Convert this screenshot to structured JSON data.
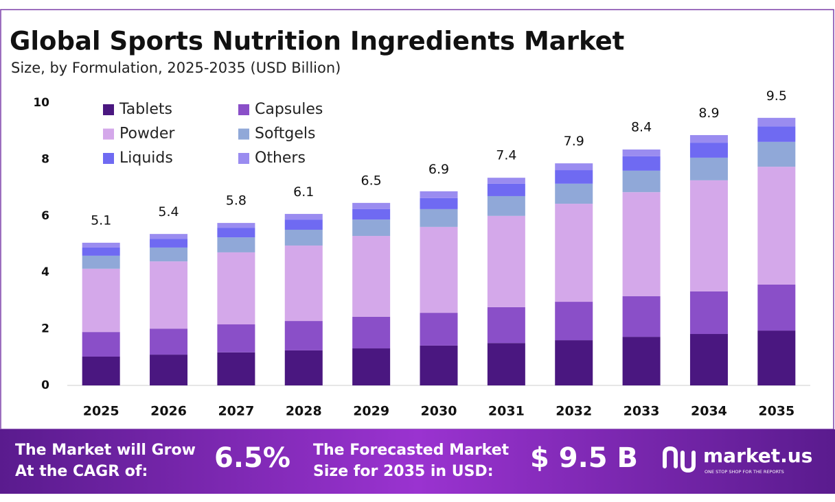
{
  "chart_data": {
    "type": "stacked_bar",
    "title": "Global Sports Nutrition Ingredients Market",
    "subtitle": "Size, by Formulation, 2025-2035 (USD Billion)",
    "categories": [
      "2025",
      "2026",
      "2027",
      "2028",
      "2029",
      "2030",
      "2031",
      "2032",
      "2033",
      "2034",
      "2035"
    ],
    "series": [
      {
        "name": "Tablets",
        "color": "#4a1780",
        "values": [
          1.02,
          1.09,
          1.17,
          1.24,
          1.31,
          1.41,
          1.5,
          1.6,
          1.72,
          1.82,
          1.94
        ]
      },
      {
        "name": "Capsules",
        "color": "#8a4fc8",
        "values": [
          0.87,
          0.92,
          0.99,
          1.04,
          1.12,
          1.16,
          1.27,
          1.36,
          1.44,
          1.51,
          1.63
        ]
      },
      {
        "name": "Powder",
        "color": "#d4a8ea",
        "values": [
          2.24,
          2.38,
          2.55,
          2.67,
          2.86,
          3.04,
          3.23,
          3.47,
          3.68,
          3.93,
          4.17
        ]
      },
      {
        "name": "Softgels",
        "color": "#90a8d8",
        "values": [
          0.46,
          0.49,
          0.53,
          0.56,
          0.58,
          0.63,
          0.7,
          0.71,
          0.76,
          0.8,
          0.88
        ]
      },
      {
        "name": "Liquids",
        "color": "#6f6af2",
        "values": [
          0.29,
          0.31,
          0.34,
          0.36,
          0.37,
          0.39,
          0.44,
          0.48,
          0.51,
          0.53,
          0.55
        ]
      },
      {
        "name": "Others",
        "color": "#9a8cf0",
        "values": [
          0.17,
          0.17,
          0.17,
          0.2,
          0.22,
          0.24,
          0.21,
          0.24,
          0.24,
          0.27,
          0.3
        ]
      }
    ],
    "totals": [
      5.1,
      5.4,
      5.8,
      6.1,
      6.5,
      6.9,
      7.4,
      7.9,
      8.4,
      8.9,
      9.5
    ],
    "ylim": [
      0,
      10
    ],
    "yticks": [
      0,
      2,
      4,
      6,
      8,
      10
    ],
    "grid": false,
    "legend": "top-left"
  },
  "footer": {
    "cagr_text": [
      "The Market will Grow",
      "At the CAGR of:"
    ],
    "cagr_value": "6.5%",
    "forecast_text": [
      "The Forecasted Market",
      "Size for 2035 in USD:"
    ],
    "forecast_value": "$ 9.5 B",
    "brand": "market.us",
    "tagline": "ONE STOP SHOP FOR THE REPORTS"
  }
}
